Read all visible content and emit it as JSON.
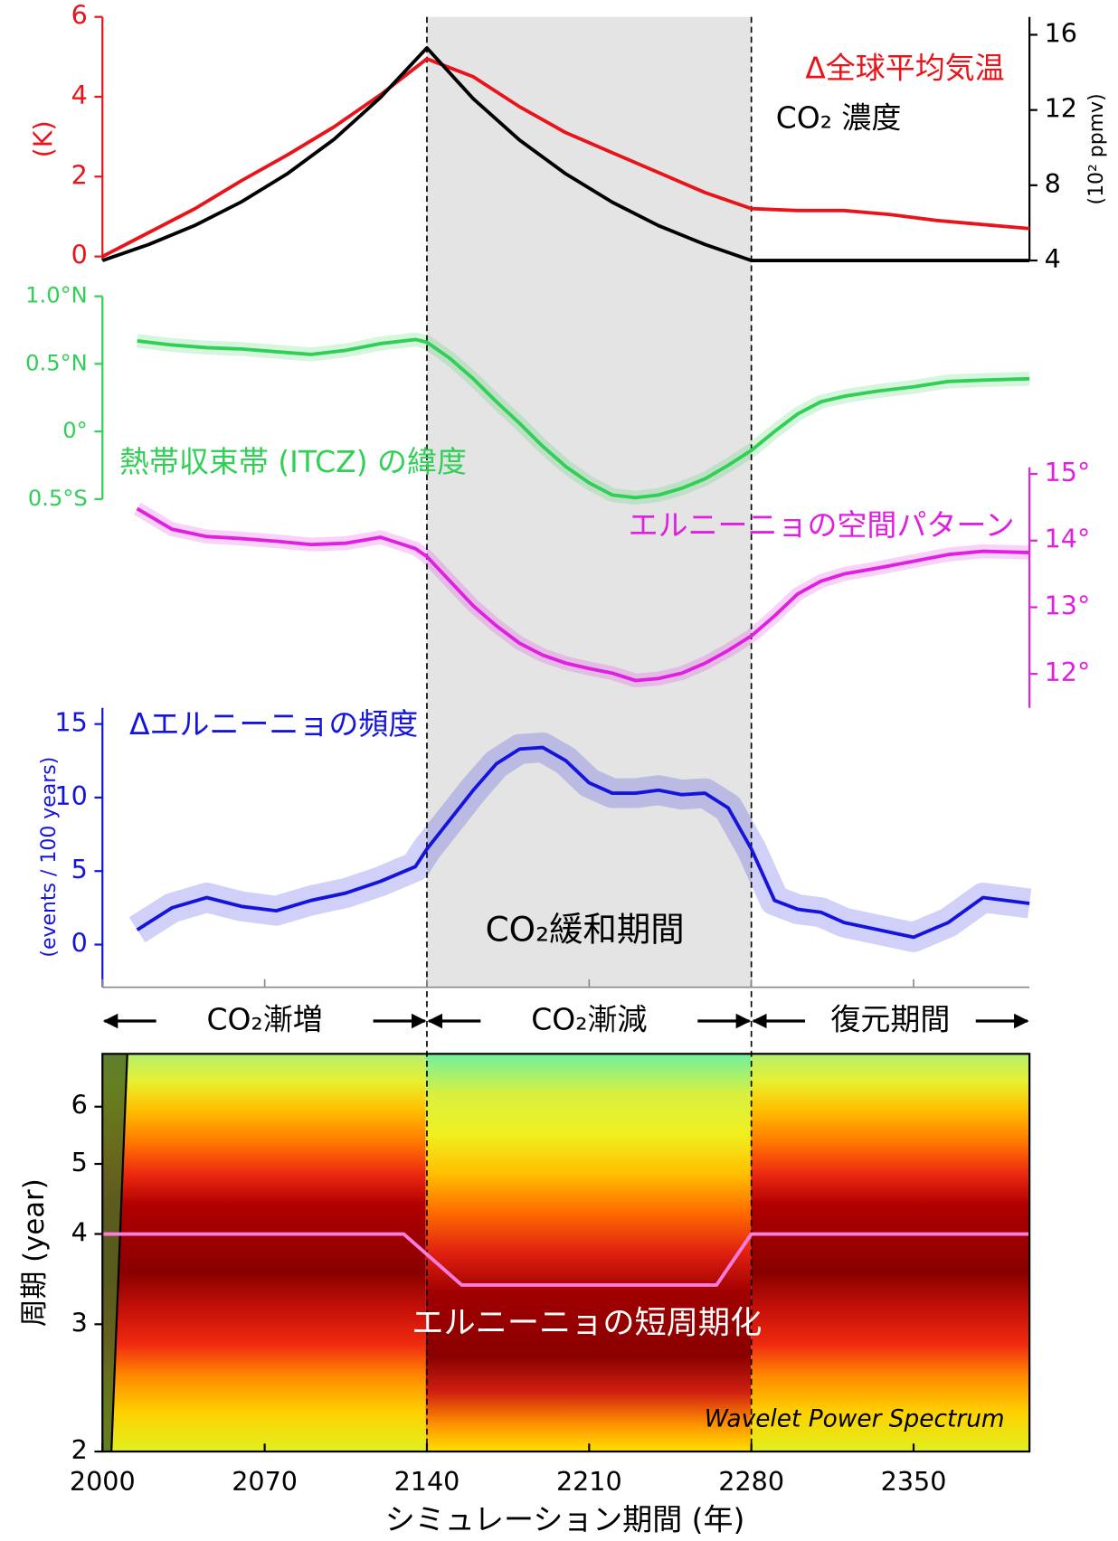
{
  "chart_data": [
    {
      "type": "line",
      "xlim": [
        2000,
        2400
      ],
      "x": [
        2000,
        2020,
        2040,
        2060,
        2080,
        2100,
        2120,
        2140,
        2160,
        2180,
        2200,
        2220,
        2240,
        2260,
        2280,
        2300,
        2320,
        2340,
        2360,
        2380,
        2400
      ],
      "ylim": [
        -0.1,
        6
      ],
      "yticks": [
        0,
        2,
        4,
        6
      ],
      "ylabel": "(K)",
      "y2lim": [
        4,
        16.95
      ],
      "y2ticks": [
        4,
        8,
        12,
        16
      ],
      "y2label": "(10² ppmv)",
      "series": [
        {
          "name": "Δ全球平均気温",
          "color": "#e8141a",
          "values": [
            0,
            0.6,
            1.2,
            1.9,
            2.55,
            3.25,
            4.05,
            4.95,
            4.5,
            3.75,
            3.1,
            2.6,
            2.1,
            1.6,
            1.2,
            1.15,
            1.15,
            1.05,
            0.9,
            0.8,
            0.7
          ]
        },
        {
          "name": "CO₂ 濃度",
          "color": "#000000",
          "axis": "y2",
          "values": [
            4,
            4.85,
            5.87,
            7.12,
            8.63,
            10.45,
            12.67,
            15.3,
            12.6,
            10.4,
            8.6,
            7.1,
            5.85,
            4.85,
            4,
            4,
            4,
            4,
            4,
            4,
            4
          ]
        }
      ]
    },
    {
      "type": "line",
      "xlim": [
        2000,
        2400
      ],
      "x": [
        2015,
        2030,
        2045,
        2060,
        2075,
        2090,
        2105,
        2120,
        2135,
        2140,
        2150,
        2160,
        2170,
        2180,
        2190,
        2200,
        2210,
        2220,
        2230,
        2240,
        2250,
        2260,
        2270,
        2280,
        2290,
        2300,
        2310,
        2320,
        2335,
        2350,
        2365,
        2380,
        2400
      ],
      "ylim": [
        -0.5,
        1.0
      ],
      "yticks": [
        {
          "value": 1.0,
          "label": "1.0°N"
        },
        {
          "value": 0.5,
          "label": "0.5°N"
        },
        {
          "value": 0,
          "label": "0°"
        },
        {
          "value": -0.5,
          "label": "0.5°S"
        }
      ],
      "series": [
        {
          "name": "熱帯収束帯 (ITCZ) の緯度",
          "color": "#2fd055",
          "values": [
            0.67,
            0.64,
            0.62,
            0.61,
            0.59,
            0.57,
            0.6,
            0.65,
            0.68,
            0.66,
            0.54,
            0.39,
            0.22,
            0.06,
            -0.11,
            -0.26,
            -0.38,
            -0.47,
            -0.49,
            -0.47,
            -0.42,
            -0.35,
            -0.25,
            -0.14,
            0,
            0.13,
            0.22,
            0.26,
            0.3,
            0.33,
            0.37,
            0.38,
            0.39
          ]
        }
      ]
    },
    {
      "type": "line",
      "xlim": [
        2000,
        2400
      ],
      "x": [
        2015,
        2030,
        2045,
        2060,
        2075,
        2090,
        2105,
        2120,
        2135,
        2140,
        2150,
        2160,
        2170,
        2180,
        2190,
        2200,
        2210,
        2220,
        2230,
        2240,
        2250,
        2260,
        2270,
        2280,
        2290,
        2300,
        2310,
        2320,
        2335,
        2350,
        2365,
        2380,
        2400
      ],
      "ylim": [
        11.49,
        15.1
      ],
      "yticks": [
        {
          "value": 15,
          "label": "15°"
        },
        {
          "value": 14,
          "label": "14°"
        },
        {
          "value": 13,
          "label": "13°"
        },
        {
          "value": 12,
          "label": "12°"
        }
      ],
      "series": [
        {
          "name": "エルニーニョの空間パターン",
          "color": "#e020e0",
          "values": [
            14.48,
            14.17,
            14.06,
            14.03,
            13.99,
            13.94,
            13.96,
            14.05,
            13.88,
            13.76,
            13.39,
            13.02,
            12.72,
            12.46,
            12.28,
            12.16,
            12.08,
            12.01,
            11.9,
            11.93,
            12.01,
            12.16,
            12.35,
            12.57,
            12.87,
            13.2,
            13.39,
            13.5,
            13.59,
            13.69,
            13.79,
            13.84,
            13.82
          ]
        }
      ]
    },
    {
      "type": "line",
      "xlim": [
        2000,
        2400
      ],
      "x": [
        2015,
        2030,
        2045,
        2060,
        2075,
        2090,
        2105,
        2120,
        2135,
        2140,
        2150,
        2160,
        2170,
        2180,
        2190,
        2200,
        2210,
        2220,
        2230,
        2240,
        2250,
        2260,
        2270,
        2280,
        2290,
        2300,
        2310,
        2320,
        2335,
        2350,
        2365,
        2380,
        2400
      ],
      "ylim": [
        -2.9,
        16.1
      ],
      "yticks": [
        0,
        5,
        10,
        15
      ],
      "ylabel": "(events / 100 years)",
      "series": [
        {
          "name": "Δエルニーニョの頻度",
          "color": "#1414dc",
          "values": [
            1.0,
            2.5,
            3.2,
            2.6,
            2.3,
            3.0,
            3.5,
            4.3,
            5.3,
            6.5,
            8.5,
            10.5,
            12.3,
            13.3,
            13.4,
            12.5,
            11.0,
            10.3,
            10.3,
            10.5,
            10.2,
            10.3,
            9.3,
            6.5,
            3.0,
            2.4,
            2.2,
            1.5,
            1.0,
            0.5,
            1.5,
            3.2,
            2.8
          ]
        }
      ]
    },
    {
      "type": "line",
      "xlim": [
        2000,
        2400
      ],
      "xticks": [
        2000,
        2070,
        2140,
        2210,
        2280,
        2350
      ],
      "xlabel": "シミュレーション期間 (年)",
      "log_y": true,
      "ylim": [
        2,
        7.1
      ],
      "yticks": [
        2,
        3,
        4,
        5,
        6
      ],
      "ylabel": "周期 (year)",
      "x": [
        2000,
        2130,
        2155,
        2265,
        2280,
        2400
      ],
      "series": [
        {
          "name": "エルニーニョの短周期化",
          "color": "#ff7de0",
          "values": [
            4,
            4,
            3.4,
            3.4,
            4,
            4
          ]
        }
      ],
      "annotation": "Wavelet Power Spectrum"
    }
  ],
  "periods": {
    "mitigation": [
      2140,
      2280
    ],
    "mitigation_label": "CO₂緩和期間",
    "phases": [
      {
        "label": "CO₂漸増",
        "range": [
          2000,
          2140
        ]
      },
      {
        "label": "CO₂漸減",
        "range": [
          2140,
          2280
        ]
      },
      {
        "label": "復元期間",
        "range": [
          2280,
          2400
        ]
      }
    ]
  }
}
